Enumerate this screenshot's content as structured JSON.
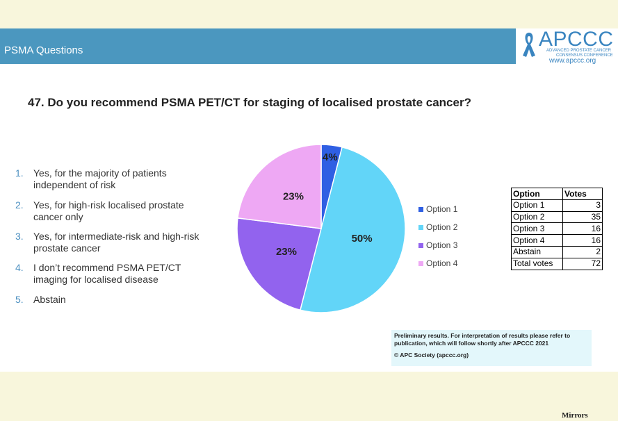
{
  "header": {
    "title": "PSMA Questions",
    "logo": "APCCC",
    "logo_line1": "ADVANCED PROSTATE CANCER",
    "logo_line2": "CONSENSUS CONFERENCE",
    "url": "www.apccc.org"
  },
  "question": "47. Do you recommend PSMA PET/CT for staging of localised prostate cancer?",
  "options": [
    {
      "number": "1.",
      "text": "Yes, for the majority of patients independent of risk"
    },
    {
      "number": "2.",
      "text": "Yes, for high-risk localised prostate cancer only"
    },
    {
      "number": "3.",
      "text": "Yes, for intermediate-risk and high-risk prostate cancer"
    },
    {
      "number": "4.",
      "text": "I don’t recommend PSMA PET/CT imaging for localised disease"
    },
    {
      "number": "5.",
      "text": "Abstain"
    }
  ],
  "chart_data": {
    "type": "pie",
    "categories": [
      "Option 1",
      "Option 2",
      "Option 3",
      "Option 4"
    ],
    "values": [
      4,
      50,
      23,
      23
    ],
    "value_labels": [
      "4%",
      "50%",
      "23%",
      "23%"
    ],
    "colors": [
      "#2f5fe3",
      "#62d5f8",
      "#9263ee",
      "#eea8f4"
    ]
  },
  "table": {
    "header": [
      "Option",
      "Votes"
    ],
    "rows": [
      [
        "Option 1",
        3
      ],
      [
        "Option 2",
        35
      ],
      [
        "Option 3",
        16
      ],
      [
        "Option 4",
        16
      ],
      [
        "Abstain",
        2
      ],
      [
        "Total votes",
        72
      ]
    ]
  },
  "note": {
    "text": "Preliminary results. For interpretation of results please refer to publication, which will follow shortly after APCCC 2021",
    "copyright": "© APC Society (apccc.org)"
  },
  "watermark": "Mirrors"
}
